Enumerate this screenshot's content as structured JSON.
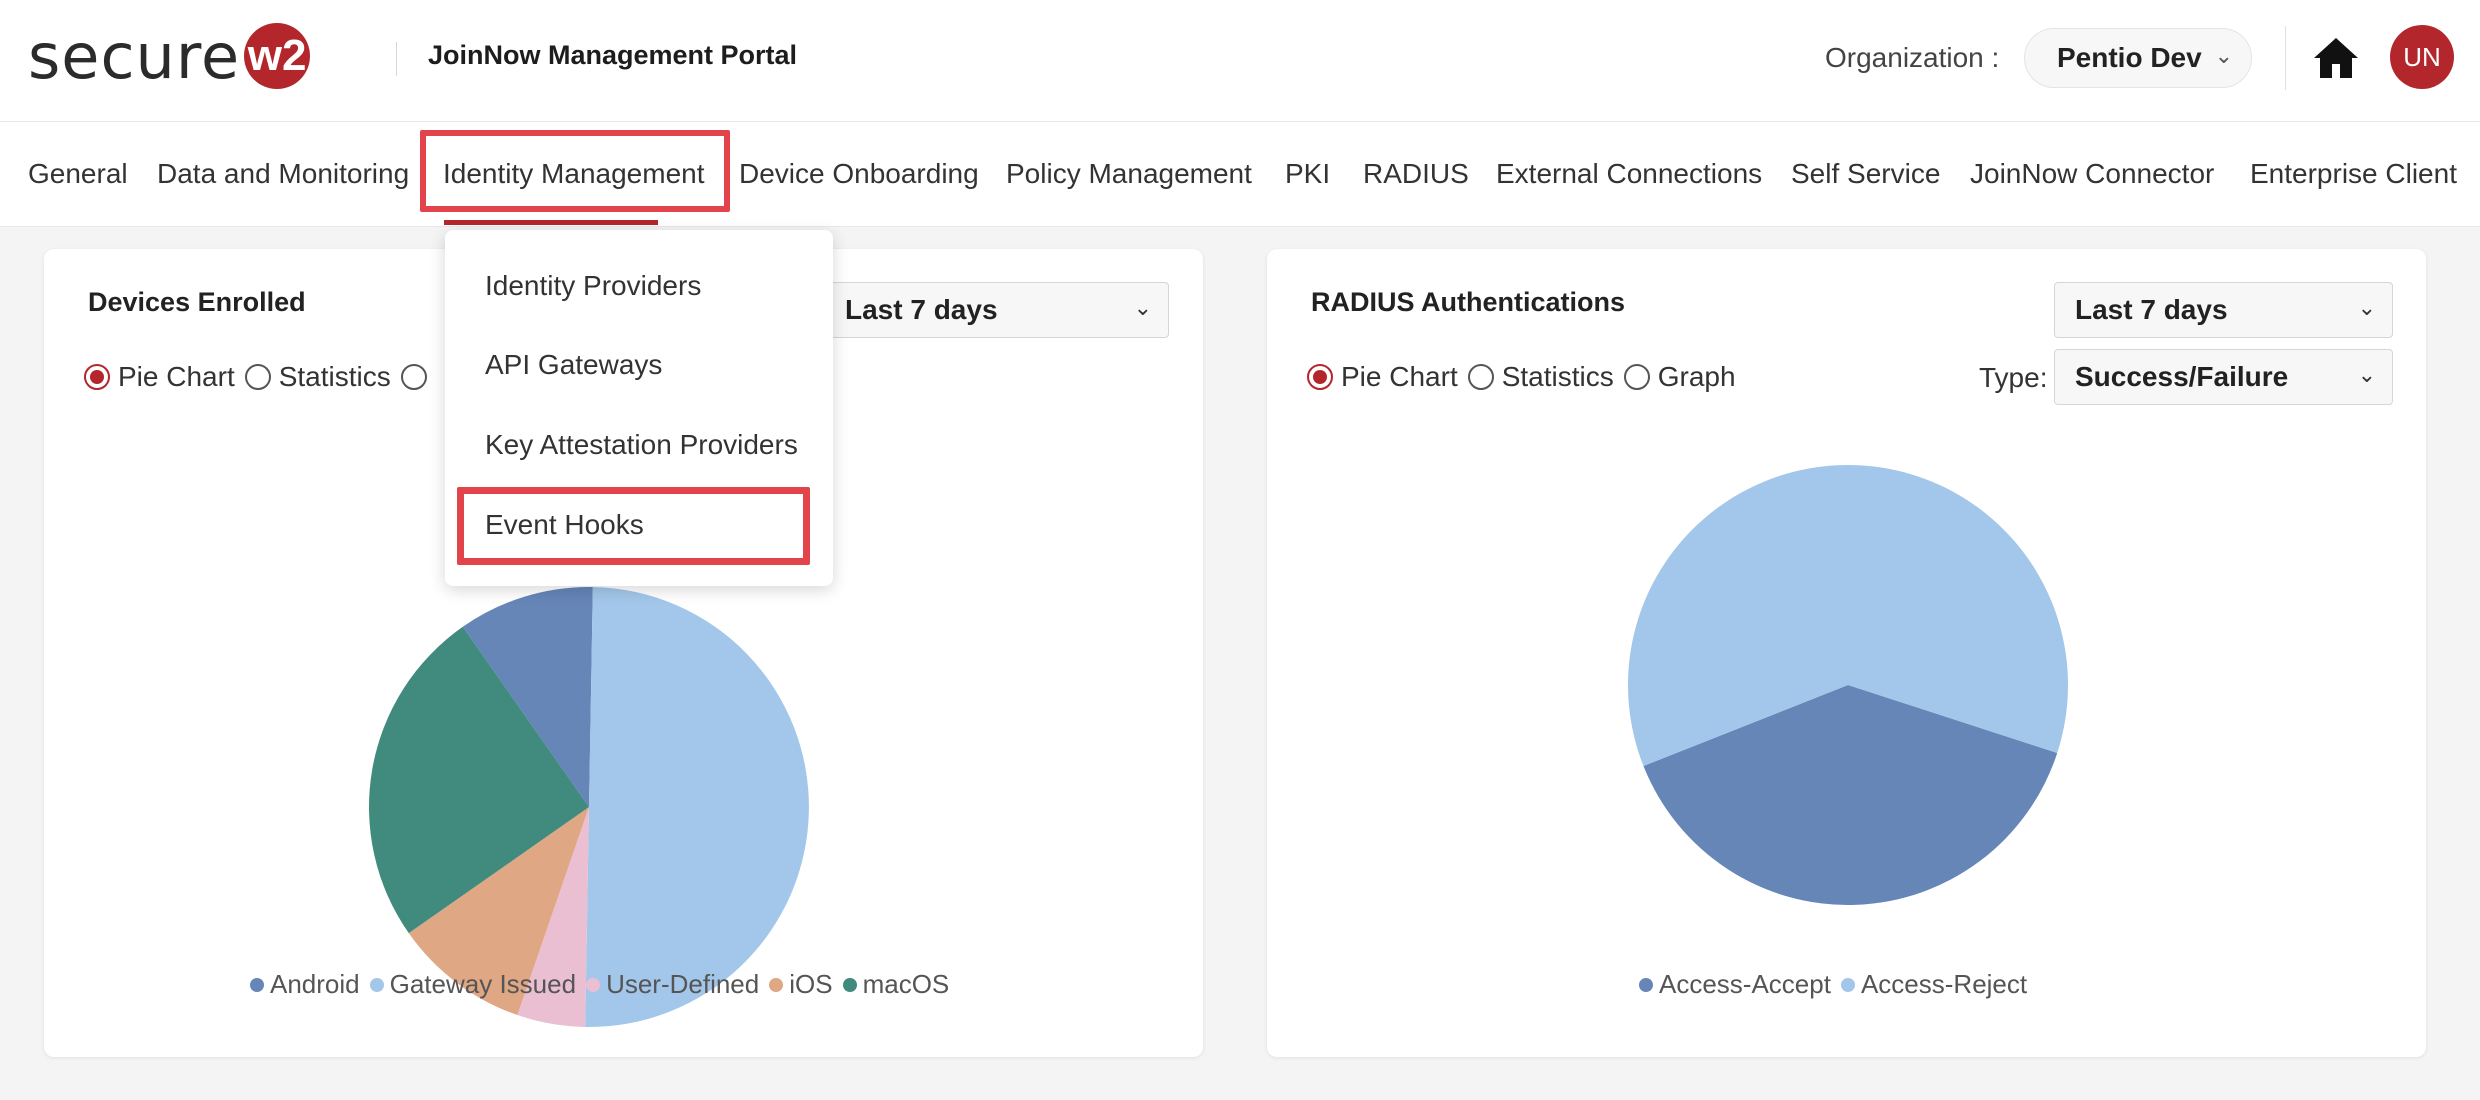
{
  "header": {
    "logo_text": "secure",
    "logo_badge": "w2",
    "portal_title": "JoinNow Management Portal",
    "organization_label": "Organization :",
    "organization_value": "Pentio Dev",
    "avatar_initials": "UN"
  },
  "nav": {
    "items": [
      {
        "label": "General"
      },
      {
        "label": "Data and Monitoring"
      },
      {
        "label": "Identity Management"
      },
      {
        "label": "Device Onboarding"
      },
      {
        "label": "Policy Management"
      },
      {
        "label": "PKI"
      },
      {
        "label": "RADIUS"
      },
      {
        "label": "External Connections"
      },
      {
        "label": "Self Service"
      },
      {
        "label": "JoinNow Connector"
      },
      {
        "label": "Enterprise Client"
      }
    ],
    "active": "Identity Management"
  },
  "dropdown": {
    "items": [
      {
        "label": "Identity Providers"
      },
      {
        "label": "API Gateways"
      },
      {
        "label": "Key Attestation Providers"
      },
      {
        "label": "Event Hooks"
      }
    ],
    "highlighted": "Event Hooks"
  },
  "devices_card": {
    "title": "Devices Enrolled",
    "range_value": "Last 7 days",
    "radio_options": [
      "Pie Chart",
      "Statistics"
    ],
    "selected_view": "Pie Chart"
  },
  "radius_card": {
    "title": "RADIUS Authentications",
    "range_value": "Last 7 days",
    "radio_options": [
      "Pie Chart",
      "Statistics",
      "Graph"
    ],
    "selected_view": "Pie Chart",
    "type_label": "Type:",
    "type_value": "Success/Failure"
  },
  "chart_data": [
    {
      "type": "pie",
      "title": "Devices Enrolled",
      "series": [
        {
          "name": "Android",
          "value": 10,
          "color": "#6686b8"
        },
        {
          "name": "Gateway Issued",
          "value": 50,
          "color": "#a3c7ea"
        },
        {
          "name": "User-Defined",
          "value": 5,
          "color": "#ebbfd2"
        },
        {
          "name": "iOS",
          "value": 10,
          "color": "#dfa783"
        },
        {
          "name": "macOS",
          "value": 25,
          "color": "#418a7e"
        }
      ],
      "legend_position": "bottom"
    },
    {
      "type": "pie",
      "title": "RADIUS Authentications",
      "series": [
        {
          "name": "Access-Accept",
          "value": 39,
          "color": "#6686b8"
        },
        {
          "name": "Access-Reject",
          "value": 61,
          "color": "#a3c7ea"
        }
      ],
      "legend_position": "bottom"
    }
  ]
}
